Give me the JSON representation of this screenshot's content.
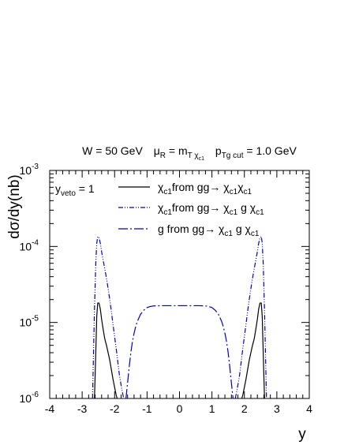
{
  "chart_data": {
    "type": "line",
    "y_scale": "log",
    "grid": false,
    "legend_position": "top-left",
    "header": {
      "w": "W = 50 GeV",
      "mu_main": "μ",
      "mu_sub": "R",
      "eq": " = m",
      "m_sub": "T χ",
      "m_subsub": "c1",
      "p_main": "p",
      "p_sub": "Tg cut",
      "p_val": " = 1.0 GeV"
    },
    "xlabel": "y",
    "ylabel": "dσ/dy(nb)",
    "xlim": [
      -4,
      4
    ],
    "ylim": [
      1e-06,
      0.001
    ],
    "x_ticks": [
      -4,
      -3,
      -2,
      -1,
      0,
      1,
      2,
      3,
      4
    ],
    "x_tick_labels": [
      "-4",
      "-3",
      "-2",
      "-1",
      "0",
      "1",
      "2",
      "3",
      "4"
    ],
    "y_ticks": [
      {
        "value": 1e-06,
        "base": "10",
        "exp": "-6"
      },
      {
        "value": 1e-05,
        "base": "10",
        "exp": "-5"
      },
      {
        "value": 0.0001,
        "base": "10",
        "exp": "-4"
      },
      {
        "value": 0.001,
        "base": "10",
        "exp": "-3"
      }
    ],
    "annotation": {
      "main": "y",
      "sub": "veto",
      "rest": " = 1"
    },
    "legend": [
      {
        "p1": "χ",
        "s1": "c1",
        "p2": "from gg→ χ",
        "s2": "c1",
        "p3": "χ",
        "s3": "c1",
        "p4": "",
        "s4": ""
      },
      {
        "p1": "χ",
        "s1": "c1",
        "p2": "from  gg→ χ",
        "s2": "c1",
        "p3": " g χ",
        "s3": "c1",
        "p4": "",
        "s4": ""
      },
      {
        "p1": "g from gg→ χ",
        "s1": "c1",
        "p2": " g χ",
        "s2": "c1",
        "p3": "",
        "s3": "",
        "p4": "",
        "s4": ""
      }
    ],
    "series": [
      {
        "style": "solid",
        "color": "#000000",
        "x": [
          -2.62,
          -2.58,
          -2.55,
          -2.52,
          -2.48,
          -2.44,
          -2.4,
          -2.35,
          -2.3,
          -2.25,
          -2.2,
          -2.15,
          -2.1,
          -2.05,
          -2.0,
          -1.95,
          -1.92,
          1.92,
          1.95,
          2.0,
          2.05,
          2.1,
          2.15,
          2.2,
          2.25,
          2.3,
          2.35,
          2.4,
          2.44,
          2.48,
          2.52,
          2.55,
          2.58,
          2.62
        ],
        "y": [
          1e-06,
          4e-06,
          1.2e-05,
          1.8e-05,
          1.8e-05,
          1.5e-05,
          1.1e-05,
          8e-06,
          6e-06,
          5e-06,
          4e-06,
          3.2e-06,
          2.4e-06,
          1.8e-06,
          1.4e-06,
          1.1e-06,
          1e-06,
          1e-06,
          1.1e-06,
          1.4e-06,
          1.8e-06,
          2.4e-06,
          3.2e-06,
          4e-06,
          5e-06,
          6e-06,
          8e-06,
          1.1e-05,
          1.5e-05,
          1.8e-05,
          1.8e-05,
          1.2e-05,
          4e-06,
          1e-06
        ]
      },
      {
        "style": "dash-dot-dot",
        "color": "#0000cc",
        "x": [
          -2.68,
          -2.62,
          -2.58,
          -2.55,
          -2.52,
          -2.48,
          -2.44,
          -2.4,
          -2.35,
          -2.3,
          -2.25,
          -2.2,
          -2.15,
          -2.1,
          -2.05,
          -2.0,
          -1.95,
          -1.9,
          -1.85,
          -1.8,
          -1.75,
          -1.72,
          1.72,
          1.75,
          1.8,
          1.85,
          1.9,
          1.95,
          2.0,
          2.05,
          2.1,
          2.15,
          2.2,
          2.25,
          2.3,
          2.35,
          2.4,
          2.44,
          2.48,
          2.52,
          2.55,
          2.58,
          2.62,
          2.68
        ],
        "y": [
          1e-06,
          1.5e-05,
          6e-05,
          0.00011,
          0.000135,
          0.00013,
          0.00011,
          8.5e-05,
          6.5e-05,
          5e-05,
          3.8e-05,
          2.8e-05,
          2e-05,
          1.4e-05,
          9.5e-06,
          6.5e-06,
          4.5e-06,
          3e-06,
          2e-06,
          1.5e-06,
          1.15e-06,
          1e-06,
          1e-06,
          1.15e-06,
          1.5e-06,
          2e-06,
          3e-06,
          4.5e-06,
          6.5e-06,
          9.5e-06,
          1.4e-05,
          2e-05,
          2.8e-05,
          3.8e-05,
          5e-05,
          6.5e-05,
          8.5e-05,
          0.00011,
          0.00013,
          0.000135,
          0.00011,
          6e-05,
          1.5e-05,
          1e-06
        ]
      },
      {
        "style": "long-dash-dot",
        "color": "#0000cc",
        "x": [
          -1.65,
          -1.6,
          -1.55,
          -1.5,
          -1.45,
          -1.4,
          -1.35,
          -1.3,
          -1.25,
          -1.2,
          -1.1,
          -1.0,
          -0.9,
          -0.8,
          -0.6,
          -0.4,
          -0.2,
          0.0,
          0.2,
          0.4,
          0.6,
          0.8,
          0.9,
          1.0,
          1.1,
          1.2,
          1.25,
          1.3,
          1.35,
          1.4,
          1.45,
          1.5,
          1.55,
          1.6,
          1.65
        ],
        "y": [
          1e-06,
          1.6e-06,
          2.6e-06,
          4e-06,
          5.6e-06,
          7.2e-06,
          8.8e-06,
          1.03e-05,
          1.15e-05,
          1.28e-05,
          1.45e-05,
          1.57e-05,
          1.62e-05,
          1.65e-05,
          1.66e-05,
          1.66e-05,
          1.66e-05,
          1.66e-05,
          1.66e-05,
          1.66e-05,
          1.66e-05,
          1.65e-05,
          1.62e-05,
          1.57e-05,
          1.45e-05,
          1.28e-05,
          1.15e-05,
          1.03e-05,
          8.8e-06,
          7.2e-06,
          5.6e-06,
          4e-06,
          2.6e-06,
          1.6e-06,
          1e-06
        ]
      }
    ]
  }
}
